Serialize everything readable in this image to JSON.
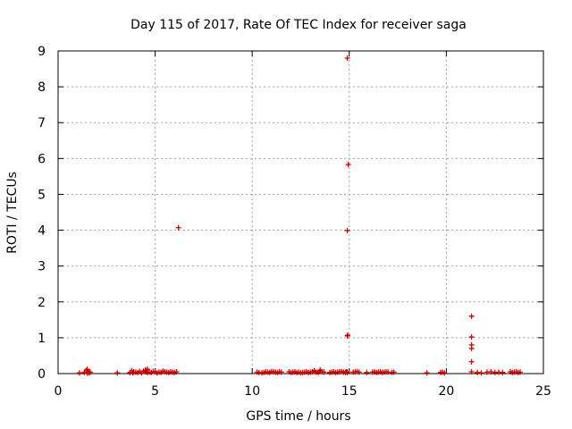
{
  "chart_data": {
    "type": "scatter",
    "title": "Day 115 of 2017, Rate Of TEC Index for receiver saga",
    "xlabel": "GPS time / hours",
    "ylabel": "ROTI / TECUs",
    "xlim": [
      0,
      25
    ],
    "ylim": [
      0,
      9
    ],
    "xticks": [
      0,
      5,
      10,
      15,
      20,
      25
    ],
    "yticks": [
      0,
      1,
      2,
      3,
      4,
      5,
      6,
      7,
      8,
      9
    ],
    "grid": true,
    "legend": "none",
    "marker": "+",
    "color": "#cc0000",
    "series": [
      {
        "x": [
          1.1,
          1.35,
          1.45,
          1.5,
          1.55,
          1.6,
          1.65,
          1.5,
          3.05,
          3.7,
          3.8,
          3.9,
          4.0,
          4.1,
          4.2,
          4.3,
          4.4,
          4.5,
          4.55,
          4.6,
          4.7,
          4.8,
          4.9,
          5.0,
          5.1,
          5.2,
          5.3,
          5.4,
          5.5,
          5.6,
          5.7,
          5.8,
          5.9,
          6.0,
          6.1,
          4.5,
          4.6,
          3.85,
          6.2,
          10.25,
          10.35,
          10.5,
          10.6,
          10.7,
          10.8,
          10.9,
          11.0,
          11.1,
          11.2,
          11.3,
          11.4,
          11.5,
          11.9,
          12.0,
          12.1,
          12.2,
          12.3,
          12.4,
          12.5,
          12.6,
          12.7,
          12.8,
          12.9,
          13.0,
          13.1,
          13.2,
          13.3,
          13.4,
          13.5,
          13.6,
          13.7,
          13.2,
          13.5,
          14.0,
          14.1,
          14.2,
          14.3,
          14.4,
          14.5,
          14.6,
          14.7,
          14.8,
          14.85,
          14.9,
          14.95,
          14.9,
          14.92,
          14.9,
          14.88,
          14.9,
          15.2,
          15.3,
          15.4,
          15.5,
          15.9,
          16.2,
          16.3,
          16.4,
          16.5,
          16.6,
          16.7,
          16.8,
          16.9,
          17.0,
          17.2,
          17.3,
          19.0,
          19.7,
          19.8,
          19.9,
          21.3,
          21.3,
          21.3,
          21.3,
          21.3,
          21.3,
          21.6,
          21.8,
          22.1,
          22.3,
          22.5,
          22.7,
          22.9,
          23.3,
          23.4,
          23.5,
          23.6,
          23.7,
          23.8
        ],
        "y": [
          0.02,
          0.03,
          0.08,
          0.12,
          0.05,
          0.02,
          0.04,
          0.01,
          0.02,
          0.03,
          0.08,
          0.05,
          0.04,
          0.03,
          0.06,
          0.02,
          0.07,
          0.09,
          0.05,
          0.12,
          0.04,
          0.03,
          0.06,
          0.05,
          0.02,
          0.04,
          0.03,
          0.07,
          0.05,
          0.04,
          0.03,
          0.05,
          0.04,
          0.03,
          0.05,
          0.1,
          0.03,
          0.02,
          4.07,
          0.04,
          0.03,
          0.02,
          0.03,
          0.05,
          0.04,
          0.03,
          0.06,
          0.05,
          0.04,
          0.03,
          0.05,
          0.04,
          0.05,
          0.03,
          0.04,
          0.05,
          0.03,
          0.04,
          0.02,
          0.03,
          0.04,
          0.05,
          0.03,
          0.04,
          0.05,
          0.06,
          0.04,
          0.03,
          0.07,
          0.05,
          0.04,
          0.08,
          0.1,
          0.03,
          0.04,
          0.05,
          0.03,
          0.04,
          0.05,
          0.06,
          0.04,
          0.03,
          0.05,
          8.8,
          5.83,
          3.99,
          1.07,
          1.05,
          0.05,
          0.03,
          0.04,
          0.05,
          0.06,
          0.04,
          0.03,
          0.04,
          0.05,
          0.03,
          0.04,
          0.05,
          0.03,
          0.04,
          0.05,
          0.04,
          0.03,
          0.04,
          0.02,
          0.03,
          0.04,
          0.02,
          1.6,
          1.02,
          0.8,
          0.7,
          0.33,
          0.05,
          0.03,
          0.02,
          0.04,
          0.05,
          0.03,
          0.04,
          0.03,
          0.05,
          0.03,
          0.04,
          0.05,
          0.03,
          0.04
        ]
      }
    ]
  }
}
